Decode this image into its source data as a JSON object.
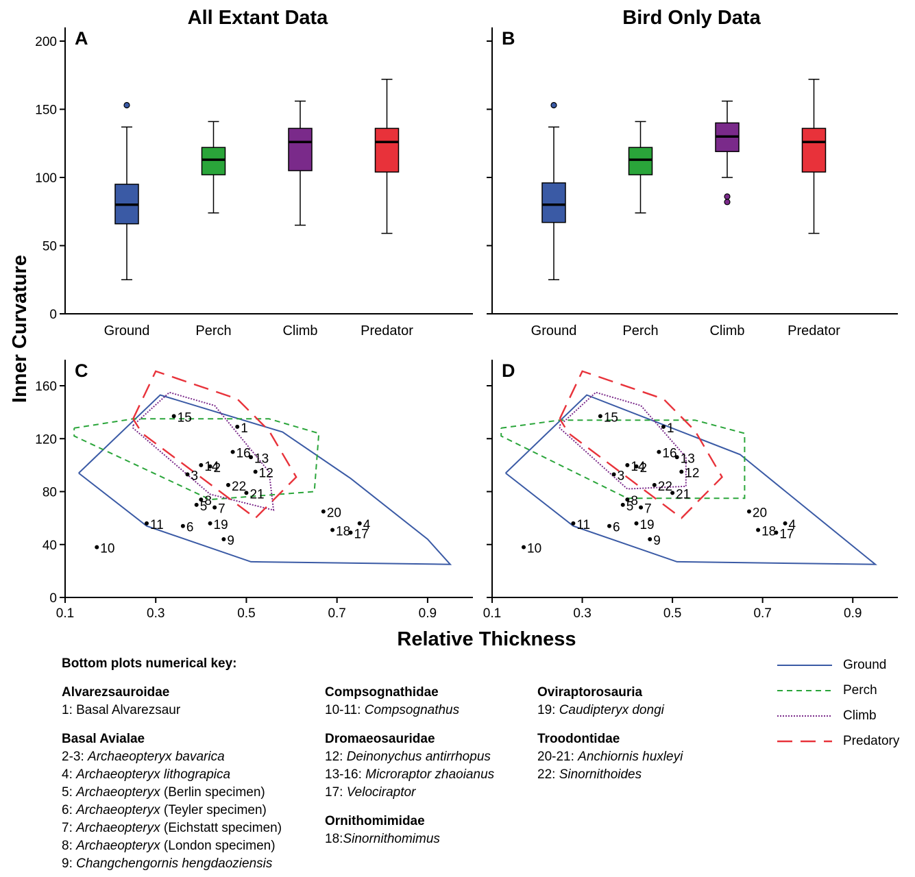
{
  "figure": {
    "title_a": "All Extant Data",
    "title_b": "Bird Only Data",
    "y_label": "Inner Curvature",
    "x_label": "Relative Thickness"
  },
  "colors": {
    "ground": "#3a5aa5",
    "perch": "#2aa53a",
    "climb": "#7a2a8a",
    "predator": "#e8323a"
  },
  "chart_data": [
    {
      "panel": "A",
      "type": "box",
      "categories": [
        "Ground",
        "Perch",
        "Climb",
        "Predator"
      ],
      "ylim": [
        0,
        200
      ],
      "yticks": [
        0,
        50,
        100,
        150,
        200
      ],
      "boxes": [
        {
          "category": "Ground",
          "min": 25,
          "q1": 66,
          "median": 80,
          "q3": 95,
          "max": 137,
          "outliers": [
            153
          ]
        },
        {
          "category": "Perch",
          "min": 74,
          "q1": 102,
          "median": 113,
          "q3": 122,
          "max": 141,
          "outliers": []
        },
        {
          "category": "Climb",
          "min": 65,
          "q1": 105,
          "median": 126,
          "q3": 136,
          "max": 156,
          "outliers": []
        },
        {
          "category": "Predator",
          "min": 59,
          "q1": 104,
          "median": 126,
          "q3": 136,
          "max": 172,
          "outliers": []
        }
      ]
    },
    {
      "panel": "B",
      "type": "box",
      "categories": [
        "Ground",
        "Perch",
        "Climb",
        "Predator"
      ],
      "ylim": [
        0,
        200
      ],
      "yticks": [
        0,
        50,
        100,
        150,
        200
      ],
      "boxes": [
        {
          "category": "Ground",
          "min": 25,
          "q1": 67,
          "median": 80,
          "q3": 96,
          "max": 137,
          "outliers": [
            153
          ]
        },
        {
          "category": "Perch",
          "min": 74,
          "q1": 102,
          "median": 113,
          "q3": 122,
          "max": 141,
          "outliers": []
        },
        {
          "category": "Climb",
          "min": 100,
          "q1": 119,
          "median": 130,
          "q3": 140,
          "max": 156,
          "outliers": [
            86,
            82
          ]
        },
        {
          "category": "Predator",
          "min": 59,
          "q1": 104,
          "median": 126,
          "q3": 136,
          "max": 172,
          "outliers": []
        }
      ]
    },
    {
      "panel": "C",
      "type": "scatter",
      "xlim": [
        0.1,
        1.0
      ],
      "ylim": [
        0,
        180
      ],
      "xticks": [
        0.1,
        0.3,
        0.5,
        0.7,
        0.9
      ],
      "yticks": [
        0,
        40,
        80,
        120,
        160
      ],
      "points": [
        {
          "label": "1",
          "x": 0.48,
          "y": 129
        },
        {
          "label": "2",
          "x": 0.42,
          "y": 99
        },
        {
          "label": "3",
          "x": 0.37,
          "y": 93
        },
        {
          "label": "4",
          "x": 0.75,
          "y": 56
        },
        {
          "label": "5",
          "x": 0.39,
          "y": 70
        },
        {
          "label": "6",
          "x": 0.36,
          "y": 54
        },
        {
          "label": "7",
          "x": 0.43,
          "y": 68
        },
        {
          "label": "8",
          "x": 0.4,
          "y": 74
        },
        {
          "label": "9",
          "x": 0.45,
          "y": 44
        },
        {
          "label": "10",
          "x": 0.17,
          "y": 38
        },
        {
          "label": "11",
          "x": 0.28,
          "y": 56
        },
        {
          "label": "12",
          "x": 0.52,
          "y": 95
        },
        {
          "label": "13",
          "x": 0.51,
          "y": 106
        },
        {
          "label": "14",
          "x": 0.4,
          "y": 100
        },
        {
          "label": "15",
          "x": 0.34,
          "y": 137
        },
        {
          "label": "16",
          "x": 0.47,
          "y": 110
        },
        {
          "label": "17",
          "x": 0.73,
          "y": 49
        },
        {
          "label": "18",
          "x": 0.69,
          "y": 51
        },
        {
          "label": "19",
          "x": 0.42,
          "y": 56
        },
        {
          "label": "20",
          "x": 0.67,
          "y": 65
        },
        {
          "label": "21",
          "x": 0.5,
          "y": 79
        },
        {
          "label": "22",
          "x": 0.46,
          "y": 85
        }
      ],
      "hulls": {
        "ground": [
          [
            0.13,
            94
          ],
          [
            0.28,
            54
          ],
          [
            0.51,
            27
          ],
          [
            0.95,
            25
          ],
          [
            0.9,
            44
          ],
          [
            0.73,
            90
          ],
          [
            0.58,
            125
          ],
          [
            0.31,
            153
          ],
          [
            0.13,
            94
          ]
        ],
        "perch": [
          [
            0.12,
            128
          ],
          [
            0.25,
            135
          ],
          [
            0.55,
            135
          ],
          [
            0.66,
            124
          ],
          [
            0.65,
            80
          ],
          [
            0.42,
            74
          ],
          [
            0.12,
            122
          ],
          [
            0.12,
            128
          ]
        ],
        "climb": [
          [
            0.25,
            130
          ],
          [
            0.33,
            155
          ],
          [
            0.43,
            145
          ],
          [
            0.55,
            95
          ],
          [
            0.56,
            66
          ],
          [
            0.42,
            78
          ],
          [
            0.25,
            128
          ],
          [
            0.25,
            130
          ]
        ],
        "predator": [
          [
            0.25,
            135
          ],
          [
            0.3,
            171
          ],
          [
            0.48,
            150
          ],
          [
            0.55,
            126
          ],
          [
            0.61,
            91
          ],
          [
            0.52,
            60
          ],
          [
            0.27,
            124
          ],
          [
            0.25,
            135
          ]
        ]
      }
    },
    {
      "panel": "D",
      "type": "scatter",
      "xlim": [
        0.1,
        1.0
      ],
      "ylim": [
        0,
        180
      ],
      "xticks": [
        0.1,
        0.3,
        0.5,
        0.7,
        0.9
      ],
      "yticks": [
        0,
        40,
        80,
        120,
        160
      ],
      "points": [
        {
          "label": "1",
          "x": 0.48,
          "y": 129
        },
        {
          "label": "2",
          "x": 0.42,
          "y": 99
        },
        {
          "label": "3",
          "x": 0.37,
          "y": 93
        },
        {
          "label": "4",
          "x": 0.75,
          "y": 56
        },
        {
          "label": "5",
          "x": 0.39,
          "y": 70
        },
        {
          "label": "6",
          "x": 0.36,
          "y": 54
        },
        {
          "label": "7",
          "x": 0.43,
          "y": 68
        },
        {
          "label": "8",
          "x": 0.4,
          "y": 74
        },
        {
          "label": "9",
          "x": 0.45,
          "y": 44
        },
        {
          "label": "10",
          "x": 0.17,
          "y": 38
        },
        {
          "label": "11",
          "x": 0.28,
          "y": 56
        },
        {
          "label": "12",
          "x": 0.52,
          "y": 95
        },
        {
          "label": "13",
          "x": 0.51,
          "y": 106
        },
        {
          "label": "14",
          "x": 0.4,
          "y": 100
        },
        {
          "label": "15",
          "x": 0.34,
          "y": 137
        },
        {
          "label": "16",
          "x": 0.47,
          "y": 110
        },
        {
          "label": "17",
          "x": 0.73,
          "y": 49
        },
        {
          "label": "18",
          "x": 0.69,
          "y": 51
        },
        {
          "label": "19",
          "x": 0.42,
          "y": 56
        },
        {
          "label": "20",
          "x": 0.67,
          "y": 65
        },
        {
          "label": "21",
          "x": 0.5,
          "y": 79
        },
        {
          "label": "22",
          "x": 0.46,
          "y": 85
        }
      ],
      "hulls": {
        "ground": [
          [
            0.13,
            94
          ],
          [
            0.28,
            54
          ],
          [
            0.51,
            27
          ],
          [
            0.95,
            25
          ],
          [
            0.65,
            108
          ],
          [
            0.31,
            153
          ],
          [
            0.13,
            94
          ]
        ],
        "perch": [
          [
            0.12,
            128
          ],
          [
            0.25,
            134
          ],
          [
            0.55,
            134
          ],
          [
            0.66,
            124
          ],
          [
            0.66,
            75
          ],
          [
            0.4,
            75
          ],
          [
            0.12,
            122
          ],
          [
            0.12,
            128
          ]
        ],
        "climb": [
          [
            0.25,
            130
          ],
          [
            0.33,
            155
          ],
          [
            0.43,
            145
          ],
          [
            0.53,
            106
          ],
          [
            0.53,
            84
          ],
          [
            0.4,
            82
          ],
          [
            0.25,
            128
          ],
          [
            0.25,
            130
          ]
        ],
        "predator": [
          [
            0.25,
            135
          ],
          [
            0.3,
            171
          ],
          [
            0.48,
            150
          ],
          [
            0.55,
            126
          ],
          [
            0.61,
            91
          ],
          [
            0.52,
            60
          ],
          [
            0.27,
            124
          ],
          [
            0.25,
            135
          ]
        ]
      }
    }
  ],
  "key": {
    "title": "Bottom plots numerical key:",
    "col1": [
      {
        "family": "Alvarezsauroidae",
        "entries": [
          [
            "1: ",
            "Basal Alvarezsaur",
            ""
          ]
        ]
      },
      {
        "family": "Basal Avialae",
        "entries": [
          [
            "2-3: ",
            "",
            "Archaeopteryx bavarica"
          ],
          [
            "4: ",
            "",
            "Archaeopteryx lithograpica"
          ],
          [
            "5: ",
            "",
            "Archaeopteryx",
            " (Berlin specimen)"
          ],
          [
            "6: ",
            "",
            "Archaeopteryx",
            " (Teyler specimen)"
          ],
          [
            "7: ",
            "",
            "Archaeopteryx",
            " (Eichstatt specimen)"
          ],
          [
            "8: ",
            "",
            "Archaeopteryx",
            " (London specimen)"
          ],
          [
            "9: ",
            "",
            "Changchengornis hengdaoziensis"
          ]
        ]
      }
    ],
    "col2": [
      {
        "family": "Compsognathidae",
        "entries": [
          [
            "10-11: ",
            "",
            "Compsognathus"
          ]
        ]
      },
      {
        "family": "Dromaeosauridae",
        "entries": [
          [
            "12: ",
            "",
            "Deinonychus antirrhopus"
          ],
          [
            "13-16: ",
            "",
            "Microraptor zhaoianus"
          ],
          [
            "17: ",
            "",
            "Velociraptor"
          ]
        ]
      },
      {
        "family": "Ornithomimidae",
        "entries": [
          [
            "18:",
            "",
            "Sinornithomimus"
          ]
        ]
      }
    ],
    "col3": [
      {
        "family": "Oviraptorosauria",
        "entries": [
          [
            "19: ",
            "",
            "Caudipteryx dongi"
          ]
        ]
      },
      {
        "family": "Troodontidae",
        "entries": [
          [
            "20-21: ",
            "",
            "Anchiornis huxleyi"
          ],
          [
            "22: ",
            "",
            "Sinornithoides"
          ]
        ]
      }
    ]
  },
  "legend": [
    {
      "name": "Ground",
      "key": "ground",
      "dash": ""
    },
    {
      "name": "Perch",
      "key": "perch",
      "dash": "8,6"
    },
    {
      "name": "Climb",
      "key": "climb",
      "dash": "2,2"
    },
    {
      "name": "Predatory",
      "key": "predator",
      "dash": "22,12"
    }
  ]
}
